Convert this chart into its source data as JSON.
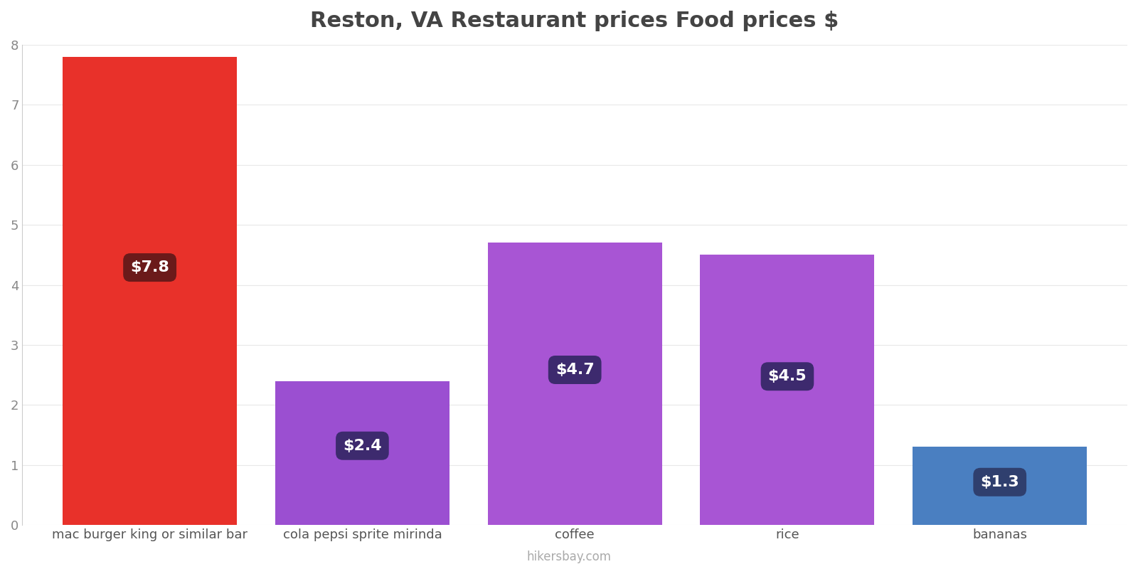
{
  "title": "Reston, VA Restaurant prices Food prices $",
  "categories": [
    "mac burger king or similar bar",
    "cola pepsi sprite mirinda",
    "coffee",
    "rice",
    "bananas"
  ],
  "values": [
    7.8,
    2.4,
    4.7,
    4.5,
    1.3
  ],
  "bar_colors": [
    "#e8312a",
    "#9b4fd1",
    "#a855d4",
    "#a855d4",
    "#4a7fc1"
  ],
  "label_texts": [
    "$7.8",
    "$2.4",
    "$4.7",
    "$4.5",
    "$1.3"
  ],
  "label_bg_colors": [
    "#6b1a1a",
    "#3d2a6e",
    "#3d2a6e",
    "#3d2a6e",
    "#2f3f6e"
  ],
  "label_text_color": "#ffffff",
  "ylim": [
    0,
    8
  ],
  "yticks": [
    0,
    1,
    2,
    3,
    4,
    5,
    6,
    7,
    8
  ],
  "title_fontsize": 22,
  "tick_fontsize": 13,
  "label_fontsize": 16,
  "watermark": "hikersbay.com",
  "watermark_color": "#aaaaaa",
  "background_color": "#ffffff",
  "title_color": "#444444",
  "bar_width": 0.82
}
